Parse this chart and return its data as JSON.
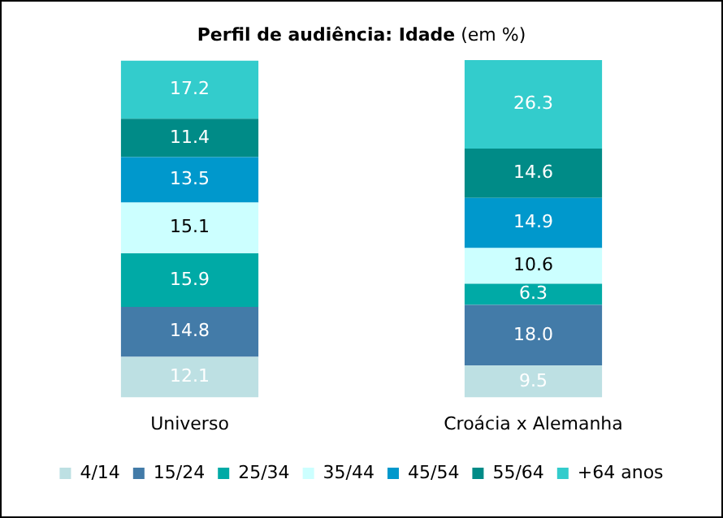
{
  "chart_data": {
    "type": "bar",
    "stacked": true,
    "title": "Perfil de audiência: Idade",
    "subtitle": "(em %)",
    "categories": [
      "Universo",
      "Croácia x Alemanha"
    ],
    "series": [
      {
        "name": "4/14",
        "color": "#bde0e3",
        "values": [
          12.1,
          9.5
        ],
        "value_labels": [
          "12.1",
          "9.5"
        ]
      },
      {
        "name": "15/24",
        "color": "#437ba8",
        "values": [
          14.8,
          18.0
        ],
        "value_labels": [
          "14.8",
          "18.0"
        ]
      },
      {
        "name": "25/34",
        "color": "#00aaa6",
        "values": [
          15.9,
          6.3
        ],
        "value_labels": [
          "15.9",
          "6.3"
        ]
      },
      {
        "name": "35/44",
        "color": "#ccffff",
        "values": [
          15.1,
          10.6
        ],
        "value_labels": [
          "15.1",
          "10.6"
        ]
      },
      {
        "name": "45/54",
        "color": "#0098cc",
        "values": [
          13.5,
          14.9
        ],
        "value_labels": [
          "13.5",
          "14.9"
        ]
      },
      {
        "name": "55/64",
        "color": "#008b87",
        "values": [
          11.4,
          14.6
        ],
        "value_labels": [
          "11.4",
          "14.6"
        ]
      },
      {
        "name": "+64 anos",
        "color": "#33cccc",
        "values": [
          17.2,
          26.3
        ],
        "value_labels": [
          "17.2",
          "26.3"
        ]
      }
    ],
    "legend": "bottom",
    "grid": false
  }
}
